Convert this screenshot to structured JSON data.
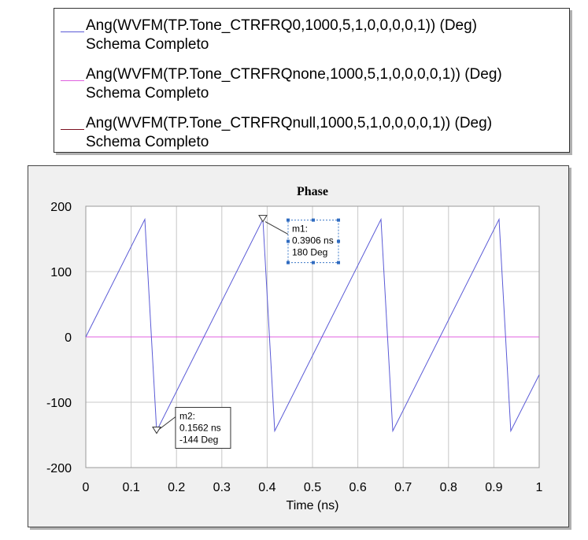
{
  "legend": {
    "entries": [
      {
        "line1": "Ang(WVFM(TP.Tone_CTRFRQ0,1000,5,1,0,0,0,0,1)) (Deg)",
        "line2": "Schema Completo",
        "color": "#5a5ad6"
      },
      {
        "line1": "Ang(WVFM(TP.Tone_CTRFRQnone,1000,5,1,0,0,0,0,1)) (Deg)",
        "line2": "Schema Completo",
        "color": "#e060e0"
      },
      {
        "line1": "Ang(WVFM(TP.Tone_CTRFRQnull,1000,5,1,0,0,0,0,1)) (Deg)",
        "line2": "Schema Completo",
        "color": "#7a1020"
      }
    ]
  },
  "chart_data": {
    "type": "line",
    "title": "Phase",
    "xlabel": "Time (ns)",
    "ylabel": "",
    "xlim": [
      0,
      1
    ],
    "ylim": [
      -200,
      200
    ],
    "xticks": [
      "0",
      "0.1",
      "0.2",
      "0.3",
      "0.4",
      "0.5",
      "0.6",
      "0.7",
      "0.8",
      "0.9",
      "1"
    ],
    "yticks": [
      "200",
      "100",
      "0",
      "-100",
      "-200"
    ],
    "grid": true,
    "series": [
      {
        "name": "Ang(WVFM(TP.Tone_CTRFRQ0,1000,5,1,0,0,0,0,1)) (Deg)",
        "color": "#5a5ad6",
        "x": [
          0,
          0.1302,
          0.1562,
          0.3906,
          0.4166,
          0.651,
          0.677,
          0.9114,
          0.9374,
          1.0
        ],
        "y": [
          0,
          180,
          -144,
          180,
          -144,
          180,
          -144,
          180,
          -144,
          -58
        ]
      },
      {
        "name": "Ang(WVFM(TP.Tone_CTRFRQnone,1000,5,1,0,0,0,0,1)) (Deg)",
        "color": "#e060e0",
        "x": [
          0,
          1
        ],
        "y": [
          0,
          0
        ]
      },
      {
        "name": "Ang(WVFM(TP.Tone_CTRFRQnull,1000,5,1,0,0,0,0,1)) (Deg)",
        "color": "#7a1020",
        "x": [
          0,
          1
        ],
        "y": [
          0,
          0
        ]
      }
    ],
    "markers": [
      {
        "name": "m1",
        "x": 0.3906,
        "y": 180,
        "lines": [
          "m1:",
          "0.3906 ns",
          "180 Deg"
        ]
      },
      {
        "name": "m2",
        "x": 0.1562,
        "y": -144,
        "lines": [
          "m2:",
          "0.1562 ns",
          "-144 Deg"
        ]
      }
    ]
  }
}
